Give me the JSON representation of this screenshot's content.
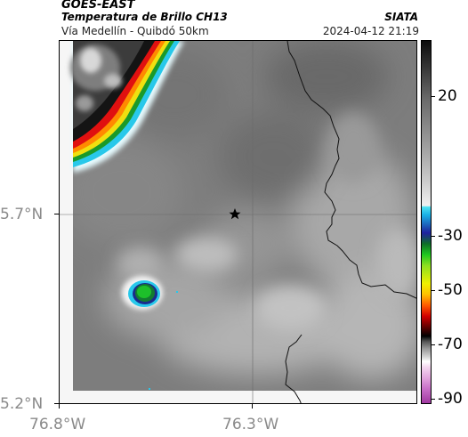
{
  "header": {
    "satellite": "GOES-EAST",
    "product": "Temperatura de Brillo CH13",
    "location": "Vía Medellín - Quibdó 50km",
    "organization": "SIATA",
    "datetime": "2024-04-12 21:19"
  },
  "axes": {
    "lat_labels": [
      "5.7°N",
      "5.2°N"
    ],
    "lon_labels": [
      "76.8°W",
      "76.3°W"
    ]
  },
  "colorbar": {
    "tick_labels": [
      "20",
      "-30",
      "-50",
      "-70",
      "-90"
    ]
  },
  "map": {
    "center_marker": "star-marker",
    "colors": {
      "background_cloud": "#7d7d7d",
      "cold_cloud_red": "#e01010",
      "cold_cloud_green": "#1dbf2a",
      "cold_cloud_blue": "#1a2b8c",
      "cyan_edge": "#28c8ea",
      "border_line": "#111111"
    }
  }
}
